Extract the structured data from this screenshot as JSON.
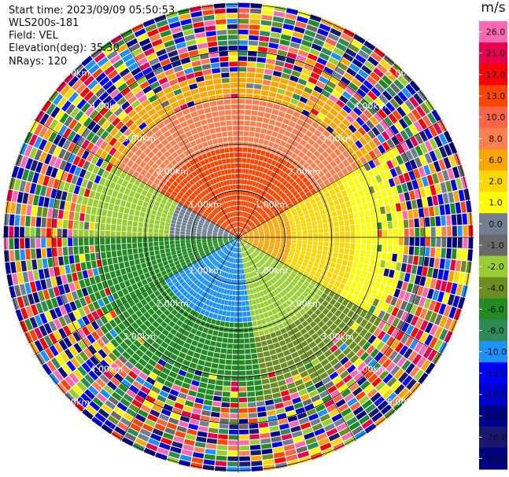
{
  "header": {
    "start_time": "Start time: 2023/09/09 05:50:53",
    "instrument": "WLS200s-181",
    "field": "Field: VEL",
    "elevation": "Elevation(deg): 35.30",
    "nrays": "NRays: 120"
  },
  "chart_data": {
    "type": "polar-ppi",
    "field": "VEL",
    "units": "m/s",
    "nrays": 120,
    "range_rings_km": [
      1.0,
      2.0,
      3.0,
      4.0,
      5.0
    ],
    "ring_labels": [
      "1.00km",
      "2.00km",
      "3.00km",
      "4.00km",
      "5.00km"
    ],
    "max_range_km": 5.05,
    "colorbar": {
      "label": "m/s",
      "ticks": [
        "26.0",
        "21.0",
        "17.0",
        "13.0",
        "10.0",
        "8.0",
        "6.0",
        "2.0",
        "1.0",
        "0.0",
        "-1.0",
        "-2.0",
        "-4.0",
        "-6.0",
        "-8.0",
        "-10.0",
        "-13.0",
        "-17.0",
        "-21.0",
        "-26.0",
        "-30.0"
      ],
      "colors": [
        "#ff69b4",
        "#e8004f",
        "#ff0000",
        "#ff4500",
        "#ff6347",
        "#ff7f50",
        "#ffa500",
        "#ffd700",
        "#ffff00",
        "#708090",
        "#696969",
        "#9acd32",
        "#6b8e23",
        "#228b22",
        "#2e8b57",
        "#1e90ff",
        "#0000ff",
        "#0000cd",
        "#00008b",
        "#191970",
        "#000080"
      ]
    }
  }
}
